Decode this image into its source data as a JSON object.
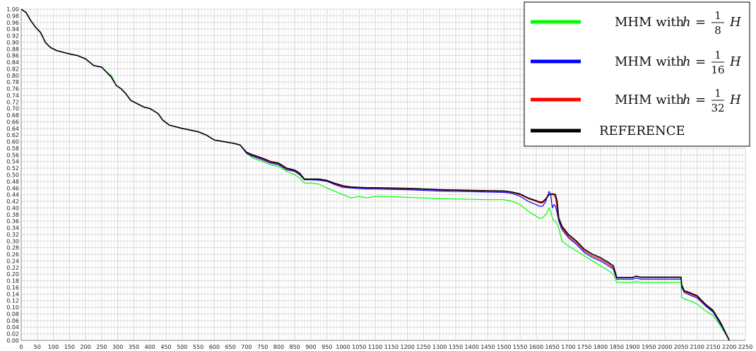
{
  "chart_data": {
    "type": "line",
    "title": "",
    "xlabel": "",
    "ylabel": "",
    "xlim": [
      0,
      2250
    ],
    "ylim": [
      0,
      1.0
    ],
    "xticks": [
      0,
      50,
      100,
      150,
      200,
      250,
      300,
      350,
      400,
      450,
      500,
      550,
      600,
      650,
      700,
      750,
      800,
      850,
      900,
      950,
      1000,
      1050,
      1100,
      1150,
      1200,
      1250,
      1300,
      1350,
      1400,
      1450,
      1500,
      1550,
      1600,
      1650,
      1700,
      1750,
      1800,
      1850,
      1900,
      1950,
      2000,
      2050,
      2100,
      2150,
      2200,
      2250
    ],
    "yticks": [
      0.0,
      0.02,
      0.04,
      0.06,
      0.08,
      0.1,
      0.12,
      0.14,
      0.16,
      0.18,
      0.2,
      0.22,
      0.24,
      0.26,
      0.28,
      0.3,
      0.32,
      0.34,
      0.36,
      0.38,
      0.4,
      0.42,
      0.44,
      0.46,
      0.48,
      0.5,
      0.52,
      0.54,
      0.56,
      0.58,
      0.6,
      0.62,
      0.64,
      0.66,
      0.68,
      0.7,
      0.72,
      0.74,
      0.76,
      0.78,
      0.8,
      0.82,
      0.84,
      0.86,
      0.88,
      0.9,
      0.92,
      0.94,
      0.96,
      0.98,
      1.0
    ],
    "grid": true,
    "legend_position": "top-right",
    "series": [
      {
        "name": "MHM with h = 1/8 H",
        "legend": {
          "prefix": "MHM with ",
          "var": "h",
          "eq": "=",
          "num": "1",
          "den": "8",
          "suffix": "H"
        },
        "color": "#00ff00",
        "x": [
          0,
          15,
          30,
          45,
          60,
          75,
          90,
          110,
          130,
          150,
          175,
          200,
          225,
          250,
          265,
          280,
          295,
          310,
          325,
          340,
          360,
          380,
          400,
          425,
          440,
          460,
          480,
          500,
          525,
          550,
          575,
          600,
          630,
          660,
          680,
          700,
          720,
          750,
          775,
          800,
          825,
          850,
          865,
          880,
          900,
          925,
          950,
          975,
          1000,
          1025,
          1050,
          1075,
          1100,
          1150,
          1200,
          1250,
          1300,
          1350,
          1400,
          1450,
          1500,
          1525,
          1550,
          1575,
          1600,
          1610,
          1620,
          1630,
          1640,
          1645,
          1650,
          1655,
          1660,
          1665,
          1670,
          1680,
          1700,
          1725,
          1750,
          1775,
          1800,
          1825,
          1840,
          1850,
          1875,
          1900,
          1910,
          1925,
          1950,
          2000,
          2050,
          2052,
          2060,
          2075,
          2100,
          2125,
          2150,
          2175,
          2200
        ],
        "values": [
          1.0,
          0.99,
          0.965,
          0.945,
          0.93,
          0.9,
          0.885,
          0.875,
          0.87,
          0.865,
          0.86,
          0.85,
          0.83,
          0.825,
          0.81,
          0.8,
          0.77,
          0.76,
          0.745,
          0.725,
          0.715,
          0.705,
          0.7,
          0.685,
          0.665,
          0.65,
          0.645,
          0.64,
          0.635,
          0.63,
          0.62,
          0.605,
          0.6,
          0.595,
          0.59,
          0.565,
          0.55,
          0.54,
          0.53,
          0.525,
          0.51,
          0.5,
          0.49,
          0.475,
          0.475,
          0.472,
          0.46,
          0.45,
          0.44,
          0.43,
          0.435,
          0.43,
          0.435,
          0.434,
          0.432,
          0.43,
          0.428,
          0.427,
          0.426,
          0.425,
          0.425,
          0.42,
          0.41,
          0.39,
          0.375,
          0.368,
          0.37,
          0.38,
          0.4,
          0.39,
          0.37,
          0.36,
          0.36,
          0.35,
          0.34,
          0.3,
          0.285,
          0.27,
          0.255,
          0.24,
          0.225,
          0.21,
          0.2,
          0.175,
          0.175,
          0.175,
          0.177,
          0.175,
          0.175,
          0.175,
          0.175,
          0.13,
          0.125,
          0.12,
          0.11,
          0.09,
          0.075,
          0.04,
          0.0
        ]
      },
      {
        "name": "MHM with h = 1/16 H",
        "legend": {
          "prefix": "MHM with ",
          "var": "h",
          "eq": "=",
          "num": "1",
          "den": "16",
          "suffix": "H"
        },
        "color": "#0000ff",
        "x": [
          0,
          15,
          30,
          45,
          60,
          75,
          90,
          110,
          130,
          150,
          175,
          200,
          225,
          250,
          265,
          280,
          295,
          310,
          325,
          340,
          360,
          380,
          400,
          425,
          440,
          460,
          480,
          500,
          525,
          550,
          575,
          600,
          630,
          660,
          680,
          700,
          720,
          750,
          775,
          800,
          825,
          850,
          865,
          880,
          900,
          925,
          950,
          975,
          1000,
          1025,
          1050,
          1075,
          1100,
          1150,
          1200,
          1250,
          1300,
          1350,
          1400,
          1450,
          1500,
          1525,
          1550,
          1575,
          1600,
          1610,
          1620,
          1630,
          1640,
          1645,
          1650,
          1655,
          1660,
          1665,
          1670,
          1680,
          1700,
          1725,
          1750,
          1775,
          1800,
          1825,
          1840,
          1850,
          1875,
          1900,
          1910,
          1925,
          1950,
          2000,
          2050,
          2052,
          2060,
          2075,
          2100,
          2125,
          2150,
          2175,
          2200
        ],
        "values": [
          1.0,
          0.99,
          0.965,
          0.945,
          0.93,
          0.9,
          0.885,
          0.875,
          0.87,
          0.865,
          0.86,
          0.85,
          0.83,
          0.825,
          0.81,
          0.795,
          0.77,
          0.76,
          0.745,
          0.725,
          0.715,
          0.705,
          0.7,
          0.685,
          0.665,
          0.65,
          0.645,
          0.64,
          0.635,
          0.63,
          0.62,
          0.605,
          0.6,
          0.595,
          0.59,
          0.565,
          0.555,
          0.545,
          0.535,
          0.53,
          0.515,
          0.51,
          0.5,
          0.485,
          0.485,
          0.484,
          0.48,
          0.47,
          0.462,
          0.46,
          0.458,
          0.457,
          0.457,
          0.456,
          0.455,
          0.453,
          0.451,
          0.45,
          0.449,
          0.448,
          0.447,
          0.444,
          0.435,
          0.42,
          0.41,
          0.405,
          0.405,
          0.42,
          0.45,
          0.44,
          0.4,
          0.41,
          0.405,
          0.385,
          0.36,
          0.335,
          0.31,
          0.29,
          0.265,
          0.25,
          0.24,
          0.225,
          0.215,
          0.185,
          0.185,
          0.185,
          0.188,
          0.185,
          0.185,
          0.185,
          0.185,
          0.16,
          0.145,
          0.138,
          0.128,
          0.105,
          0.085,
          0.045,
          0.0
        ]
      },
      {
        "name": "MHM with h = 1/32 H",
        "legend": {
          "prefix": "MHM with ",
          "var": "h",
          "eq": "=",
          "num": "1",
          "den": "32",
          "suffix": "H"
        },
        "color": "#ff0000",
        "x": [
          0,
          15,
          30,
          45,
          60,
          75,
          90,
          110,
          130,
          150,
          175,
          200,
          225,
          250,
          265,
          280,
          295,
          310,
          325,
          340,
          360,
          380,
          400,
          425,
          440,
          460,
          480,
          500,
          525,
          550,
          575,
          600,
          630,
          660,
          680,
          700,
          720,
          750,
          775,
          800,
          825,
          850,
          865,
          880,
          900,
          925,
          950,
          975,
          1000,
          1025,
          1050,
          1075,
          1100,
          1150,
          1200,
          1250,
          1300,
          1350,
          1400,
          1450,
          1500,
          1525,
          1550,
          1575,
          1600,
          1610,
          1620,
          1630,
          1640,
          1645,
          1650,
          1655,
          1660,
          1665,
          1670,
          1680,
          1700,
          1725,
          1750,
          1775,
          1800,
          1825,
          1840,
          1850,
          1875,
          1900,
          1910,
          1925,
          1950,
          2000,
          2050,
          2052,
          2060,
          2075,
          2100,
          2125,
          2150,
          2175,
          2200
        ],
        "values": [
          1.0,
          0.99,
          0.965,
          0.945,
          0.93,
          0.9,
          0.885,
          0.875,
          0.87,
          0.865,
          0.86,
          0.85,
          0.83,
          0.825,
          0.81,
          0.795,
          0.77,
          0.76,
          0.745,
          0.725,
          0.715,
          0.705,
          0.7,
          0.685,
          0.665,
          0.65,
          0.645,
          0.64,
          0.635,
          0.63,
          0.62,
          0.605,
          0.6,
          0.595,
          0.59,
          0.567,
          0.558,
          0.548,
          0.538,
          0.533,
          0.518,
          0.512,
          0.503,
          0.486,
          0.486,
          0.486,
          0.482,
          0.472,
          0.465,
          0.462,
          0.461,
          0.46,
          0.46,
          0.459,
          0.458,
          0.456,
          0.454,
          0.453,
          0.452,
          0.451,
          0.45,
          0.447,
          0.44,
          0.428,
          0.42,
          0.415,
          0.415,
          0.425,
          0.44,
          0.44,
          0.44,
          0.44,
          0.43,
          0.4,
          0.365,
          0.34,
          0.315,
          0.295,
          0.27,
          0.255,
          0.245,
          0.23,
          0.22,
          0.19,
          0.19,
          0.19,
          0.193,
          0.19,
          0.19,
          0.19,
          0.19,
          0.165,
          0.148,
          0.142,
          0.132,
          0.108,
          0.088,
          0.048,
          0.0
        ]
      },
      {
        "name": "REFERENCE",
        "legend": {
          "text": "REFERENCE"
        },
        "color": "#000000",
        "x": [
          0,
          15,
          30,
          45,
          60,
          75,
          90,
          110,
          130,
          150,
          175,
          200,
          225,
          250,
          265,
          280,
          295,
          310,
          325,
          340,
          360,
          380,
          400,
          425,
          440,
          460,
          480,
          500,
          525,
          550,
          575,
          600,
          630,
          660,
          680,
          700,
          720,
          750,
          775,
          800,
          825,
          850,
          865,
          880,
          900,
          925,
          950,
          975,
          1000,
          1025,
          1050,
          1075,
          1100,
          1150,
          1200,
          1250,
          1300,
          1350,
          1400,
          1450,
          1500,
          1525,
          1550,
          1575,
          1600,
          1610,
          1620,
          1630,
          1640,
          1645,
          1650,
          1655,
          1660,
          1665,
          1670,
          1680,
          1700,
          1725,
          1750,
          1775,
          1800,
          1825,
          1840,
          1850,
          1875,
          1900,
          1910,
          1925,
          1950,
          2000,
          2050,
          2052,
          2060,
          2075,
          2100,
          2125,
          2150,
          2175,
          2200
        ],
        "values": [
          1.0,
          0.99,
          0.965,
          0.945,
          0.93,
          0.9,
          0.885,
          0.875,
          0.87,
          0.865,
          0.86,
          0.85,
          0.83,
          0.825,
          0.81,
          0.795,
          0.77,
          0.76,
          0.745,
          0.725,
          0.715,
          0.705,
          0.7,
          0.685,
          0.665,
          0.65,
          0.645,
          0.64,
          0.635,
          0.63,
          0.62,
          0.605,
          0.6,
          0.595,
          0.59,
          0.568,
          0.56,
          0.55,
          0.54,
          0.535,
          0.52,
          0.514,
          0.505,
          0.487,
          0.487,
          0.487,
          0.483,
          0.474,
          0.467,
          0.463,
          0.462,
          0.461,
          0.461,
          0.46,
          0.459,
          0.457,
          0.455,
          0.454,
          0.453,
          0.452,
          0.451,
          0.448,
          0.442,
          0.43,
          0.422,
          0.418,
          0.418,
          0.428,
          0.44,
          0.442,
          0.442,
          0.442,
          0.44,
          0.42,
          0.37,
          0.345,
          0.32,
          0.3,
          0.275,
          0.26,
          0.25,
          0.235,
          0.225,
          0.19,
          0.19,
          0.19,
          0.194,
          0.191,
          0.191,
          0.191,
          0.191,
          0.168,
          0.15,
          0.145,
          0.135,
          0.11,
          0.09,
          0.05,
          0.0
        ]
      }
    ]
  }
}
